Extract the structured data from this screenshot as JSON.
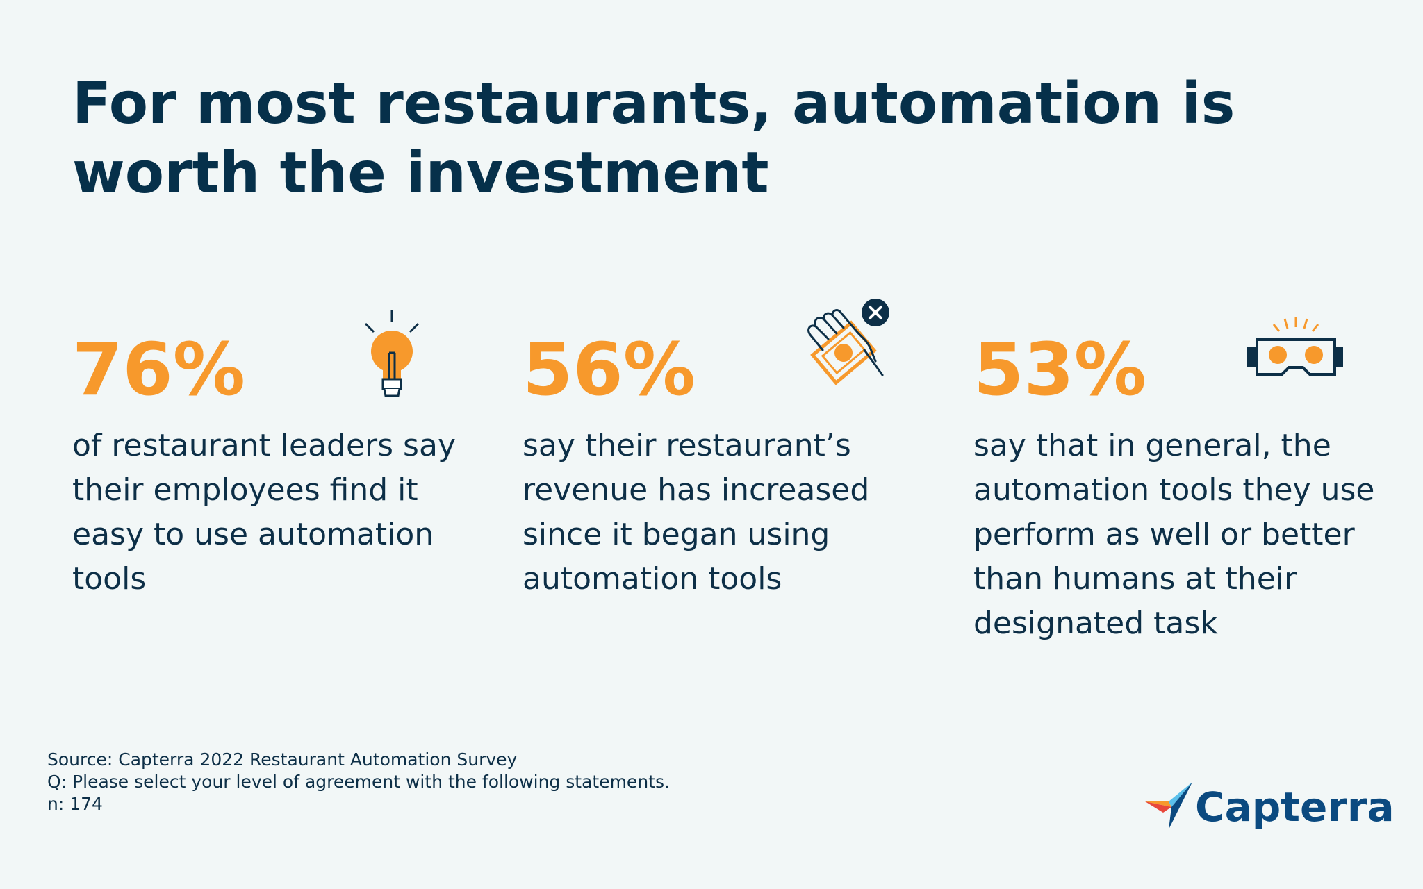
{
  "title": "For most restaurants, automation is worth the investment",
  "colors": {
    "accent": "#f7992c",
    "text": "#0d2f47",
    "background": "#f2f7f7",
    "brand": "#0b4a80"
  },
  "chart_data": {
    "type": "table",
    "title": "For most restaurants, automation is worth the investment",
    "stats": [
      {
        "value": "76%",
        "value_num": 76,
        "icon": "lightbulb-icon",
        "text": "of restaurant leaders say their employees find it easy to use automation tools"
      },
      {
        "value": "56%",
        "value_num": 56,
        "icon": "money-hand-icon",
        "text": "say their restaurant’s revenue has increased since it began using automation tools"
      },
      {
        "value": "53%",
        "value_num": 53,
        "icon": "vr-headset-icon",
        "text": "say that in general, the automation tools they use perform as well or better than humans at their designated task"
      }
    ]
  },
  "source": {
    "line1": "Source: Capterra 2022 Restaurant Automation Survey",
    "line2": "Q: Please select your level of agreement with the following statements.",
    "line3": "n: 174"
  },
  "brand": {
    "name": "Capterra"
  }
}
